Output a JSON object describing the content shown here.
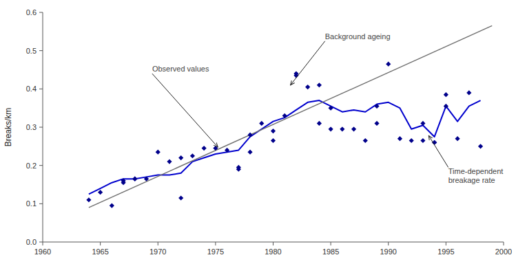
{
  "chart_data": {
    "type": "scatter",
    "ylabel": "Breaks/km",
    "xlim": [
      1960,
      2000
    ],
    "ylim": [
      0.0,
      0.6
    ],
    "xticks": [
      1960,
      1965,
      1970,
      1975,
      1980,
      1985,
      1990,
      1995,
      2000
    ],
    "yticks": [
      {
        "value": 0.0,
        "label": "0.0"
      },
      0.1,
      0.2,
      0.3,
      0.4,
      0.5,
      0.6
    ],
    "grid": false,
    "series": [
      {
        "type": "scatter",
        "color": "#00008B",
        "marker": "diamond",
        "x": [
          1964,
          1965,
          1966,
          1967,
          1967,
          1968,
          1968,
          1969,
          1970,
          1971,
          1972,
          1972,
          1973,
          1974,
          1975,
          1976,
          1977,
          1977,
          1978,
          1978,
          1979,
          1980,
          1980,
          1981,
          1982,
          1982,
          1983,
          1984,
          1984,
          1985,
          1985,
          1986,
          1987,
          1988,
          1989,
          1989,
          1990,
          1991,
          1992,
          1993,
          1993,
          1994,
          1994,
          1995,
          1995,
          1996,
          1997,
          1998
        ],
        "values": [
          0.11,
          0.13,
          0.095,
          0.16,
          0.155,
          0.165,
          0.165,
          0.165,
          0.235,
          0.21,
          0.22,
          0.115,
          0.225,
          0.245,
          0.245,
          0.24,
          0.195,
          0.19,
          0.28,
          0.235,
          0.31,
          0.29,
          0.265,
          0.33,
          0.44,
          0.435,
          0.405,
          0.41,
          0.31,
          0.35,
          0.295,
          0.295,
          0.295,
          0.265,
          0.355,
          0.31,
          0.465,
          0.27,
          0.265,
          0.265,
          0.31,
          0.26,
          0.26,
          0.385,
          0.355,
          0.27,
          0.39,
          0.25
        ]
      },
      {
        "type": "line",
        "color": "#0000CD",
        "line_style": "solid",
        "x": [
          1964,
          1965,
          1966,
          1967,
          1968,
          1969,
          1970,
          1971,
          1972,
          1973,
          1974,
          1975,
          1976,
          1977,
          1978,
          1979,
          1980,
          1981,
          1982,
          1983,
          1984,
          1985,
          1986,
          1987,
          1988,
          1989,
          1990,
          1991,
          1992,
          1993,
          1994,
          1995,
          1996,
          1997,
          1998
        ],
        "values": [
          0.125,
          0.14,
          0.155,
          0.165,
          0.165,
          0.17,
          0.175,
          0.175,
          0.18,
          0.21,
          0.22,
          0.23,
          0.235,
          0.24,
          0.275,
          0.295,
          0.315,
          0.325,
          0.345,
          0.365,
          0.37,
          0.355,
          0.34,
          0.345,
          0.34,
          0.36,
          0.365,
          0.35,
          0.295,
          0.305,
          0.275,
          0.355,
          0.315,
          0.355,
          0.37
        ]
      },
      {
        "type": "line",
        "color": "#707070",
        "line_style": "solid",
        "x": [
          1964,
          1999
        ],
        "values": [
          0.09,
          0.565
        ]
      }
    ],
    "annotations": [
      {
        "text": "Observed values",
        "x": 1975.2,
        "y": 0.248,
        "text_x": 1969.5,
        "text_y": 0.44
      },
      {
        "text": "Background ageing",
        "x": 1981.5,
        "y": 0.41,
        "text_x": 1984.5,
        "text_y": 0.525
      },
      {
        "text": "Time-dependent\nbreakage rate",
        "x": 1993.5,
        "y": 0.278,
        "text_x": 1995.2,
        "text_y": 0.195
      }
    ]
  }
}
